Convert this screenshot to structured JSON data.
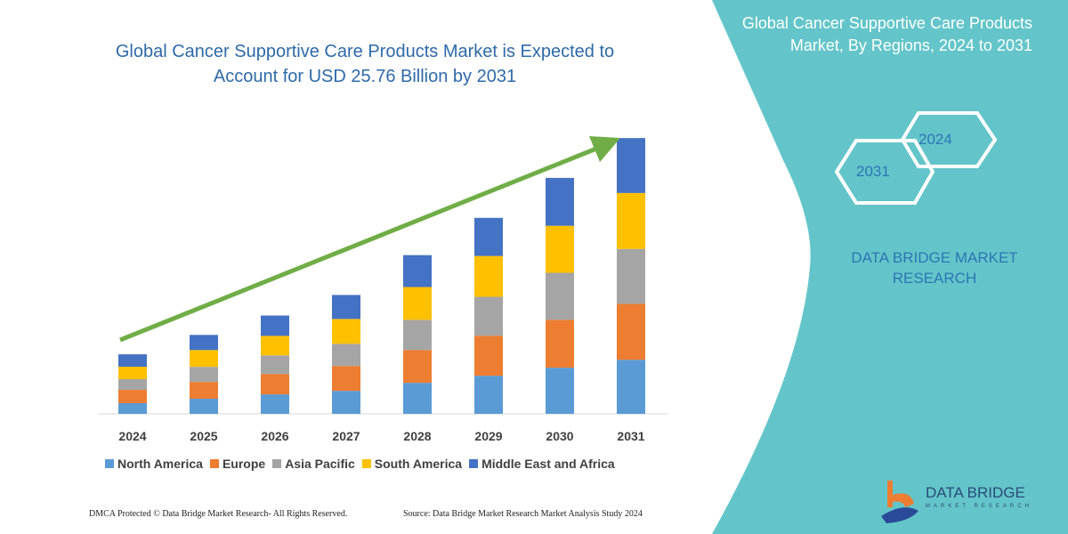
{
  "colors": {
    "panel": "#63c5c9",
    "arrow": "#70ad47",
    "title": "#2e6aa8",
    "brand_text": "#2e75b6"
  },
  "header": {
    "title": "Global Cancer Supportive Care Products Market is Expected to Account for USD 25.76 Billion by 2031"
  },
  "side_panel": {
    "title": "Global Cancer Supportive Care Products Market, By Regions, 2024 to 2031",
    "hex_start": "2024",
    "hex_end": "2031",
    "brand": "DATA BRIDGE MARKET RESEARCH",
    "logo_text": "DATA BRIDGE",
    "logo_sub": "MARKET RESEARCH"
  },
  "footer": {
    "left": "DMCA Protected © Data Bridge Market Research- All Rights Reserved.",
    "right": "Source: Data Bridge Market Research Market Analysis Study 2024"
  },
  "chart_data": {
    "type": "bar",
    "stacked": true,
    "title": "Global Cancer Supportive Care Products Market is Expected to Account for USD 25.76 Billion by 2031",
    "categories": [
      "2024",
      "2025",
      "2026",
      "2027",
      "2028",
      "2029",
      "2030",
      "2031"
    ],
    "legend_position": "bottom",
    "grid": false,
    "trend_arrow": true,
    "series": [
      {
        "name": "North America",
        "color": "#5b9bd5",
        "values": [
          1.0,
          1.41,
          1.82,
          2.15,
          2.9,
          3.56,
          4.31,
          5.05
        ]
      },
      {
        "name": "Europe",
        "color": "#ed7d31",
        "values": [
          1.24,
          1.57,
          1.9,
          2.32,
          3.06,
          3.73,
          4.47,
          5.22
        ]
      },
      {
        "name": "Asia Pacific",
        "color": "#a5a5a5",
        "values": [
          1.0,
          1.41,
          1.74,
          2.07,
          2.82,
          3.64,
          4.39,
          5.13
        ]
      },
      {
        "name": "South America",
        "color": "#ffc000",
        "values": [
          1.16,
          1.57,
          1.82,
          2.32,
          3.06,
          3.81,
          4.39,
          5.22
        ]
      },
      {
        "name": "Middle East and Africa",
        "color": "#4472c4",
        "values": [
          1.16,
          1.41,
          1.9,
          2.24,
          2.98,
          3.56,
          4.47,
          5.13
        ]
      }
    ],
    "ylim": [
      0,
      25.76
    ]
  }
}
